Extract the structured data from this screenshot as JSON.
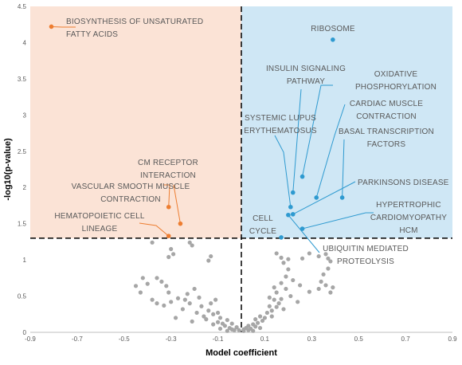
{
  "chart_data": {
    "type": "scatter",
    "xlabel": "Model coefficient",
    "ylabel": "-log10(p-value)",
    "xlim": [
      -0.9,
      0.9
    ],
    "ylim": [
      0,
      4.5
    ],
    "x_ticks": [
      "-0.9",
      "-0.7",
      "-0.5",
      "-0.3",
      "-0.1",
      "0.1",
      "0.3",
      "0.5",
      "0.7",
      "0.9"
    ],
    "x_tick_values": [
      -0.9,
      -0.7,
      -0.5,
      -0.3,
      -0.1,
      0.1,
      0.3,
      0.5,
      0.7,
      0.9
    ],
    "y_ticks": [
      "0",
      "0.5",
      "1",
      "1.5",
      "2",
      "2.5",
      "3",
      "3.5",
      "4",
      "4.5"
    ],
    "y_tick_values": [
      0,
      0.5,
      1,
      1.5,
      2,
      2.5,
      3,
      3.5,
      4,
      4.5
    ],
    "threshold_y": 1.3,
    "threshold_x": 0,
    "colors": {
      "negative": "#ed7d31",
      "positive": "#2e9ad0",
      "nonsig": "#a6a6a6",
      "negative_region": "#fbe3d6",
      "positive_region": "#cfe7f5"
    },
    "labeled_points": [
      {
        "name": "BIOSYNTHESIS OF UNSATURATED FATTY ACIDS",
        "lines": [
          "BIOSYNTHESIS OF UNSATURATED",
          "FATTY ACIDS"
        ],
        "x": -0.81,
        "y": 4.22,
        "group": "negative"
      },
      {
        "name": "CM RECEPTOR INTERACTION",
        "lines": [
          "CM RECEPTOR",
          "INTERACTION"
        ],
        "x": -0.26,
        "y": 1.5,
        "group": "negative"
      },
      {
        "name": "VASCULAR SMOOTH MUSCLE CONTRACTION",
        "lines": [
          "VASCULAR SMOOTH MUSCLE",
          "CONTRACTION"
        ],
        "x": -0.31,
        "y": 1.73,
        "group": "negative"
      },
      {
        "name": "HEMATOPOIETIC CELL LINEAGE",
        "lines": [
          "HEMATOPOIETIC CELL",
          "LINEAGE"
        ],
        "x": -0.31,
        "y": 1.33,
        "group": "negative"
      },
      {
        "name": "RIBOSOME",
        "lines": [
          "RIBOSOME"
        ],
        "x": 0.39,
        "y": 4.04,
        "group": "positive"
      },
      {
        "name": "INSULIN SIGNALING PATHWAY",
        "lines": [
          "INSULIN SIGNALING",
          "PATHWAY"
        ],
        "x": 0.22,
        "y": 1.93,
        "group": "positive"
      },
      {
        "name": "OXIDATIVE PHOSPHORYLATION",
        "lines": [
          "OXIDATIVE",
          "PHOSPHORYLATION"
        ],
        "x": 0.26,
        "y": 2.15,
        "group": "positive"
      },
      {
        "name": "CARDIAC MUSCLE CONTRACTION",
        "lines": [
          "CARDIAC MUSCLE",
          "CONTRACTION"
        ],
        "x": 0.32,
        "y": 1.86,
        "group": "positive"
      },
      {
        "name": "BASAL TRANSCRIPTION FACTORS",
        "lines": [
          "BASAL TRANSCRIPTION",
          "FACTORS"
        ],
        "x": 0.43,
        "y": 1.86,
        "group": "positive"
      },
      {
        "name": "SYSTEMIC LUPUS ERYTHEMATOSUS",
        "lines": [
          "SYSTEMIC LUPUS",
          "ERYTHEMATOSUS"
        ],
        "x": 0.21,
        "y": 1.73,
        "group": "positive"
      },
      {
        "name": "PARKINSONS DISEASE",
        "lines": [
          "PARKINSONS DISEASE"
        ],
        "x": 0.22,
        "y": 1.63,
        "group": "positive"
      },
      {
        "name": "HYPERTROPHIC CARDIOMYOPATHY HCM",
        "lines": [
          "HYPERTROPHIC",
          "CARDIOMYOPATHY",
          "HCM"
        ],
        "x": 0.26,
        "y": 1.43,
        "group": "positive"
      },
      {
        "name": "CELL CYCLE",
        "lines": [
          "CELL",
          "CYCLE"
        ],
        "x": 0.17,
        "y": 1.31,
        "group": "positive"
      },
      {
        "name": "UBIQUITIN MEDIATED PROTEOLYSIS",
        "lines": [
          "UBIQUITIN MEDIATED",
          "PROTEOLYSIS"
        ],
        "x": 0.2,
        "y": 1.62,
        "group": "positive"
      }
    ],
    "nonsig_points": [
      [
        -0.38,
        1.24
      ],
      [
        -0.3,
        1.15
      ],
      [
        -0.29,
        1.08
      ],
      [
        -0.31,
        1.04
      ],
      [
        -0.22,
        1.24
      ],
      [
        -0.21,
        1.2
      ],
      [
        -0.13,
        1.05
      ],
      [
        -0.14,
        0.99
      ],
      [
        -0.42,
        0.75
      ],
      [
        -0.4,
        0.67
      ],
      [
        -0.45,
        0.64
      ],
      [
        -0.43,
        0.55
      ],
      [
        -0.36,
        0.75
      ],
      [
        -0.34,
        0.7
      ],
      [
        -0.32,
        0.64
      ],
      [
        -0.31,
        0.55
      ],
      [
        -0.38,
        0.45
      ],
      [
        -0.36,
        0.4
      ],
      [
        -0.33,
        0.37
      ],
      [
        -0.3,
        0.42
      ],
      [
        -0.27,
        0.47
      ],
      [
        -0.24,
        0.45
      ],
      [
        -0.22,
        0.4
      ],
      [
        -0.23,
        0.53
      ],
      [
        -0.2,
        0.6
      ],
      [
        -0.18,
        0.48
      ],
      [
        -0.17,
        0.36
      ],
      [
        -0.19,
        0.27
      ],
      [
        -0.16,
        0.22
      ],
      [
        -0.14,
        0.3
      ],
      [
        -0.13,
        0.4
      ],
      [
        -0.12,
        0.25
      ],
      [
        -0.1,
        0.27
      ],
      [
        -0.09,
        0.2
      ],
      [
        -0.12,
        0.11
      ],
      [
        -0.1,
        0.14
      ],
      [
        -0.08,
        0.12
      ],
      [
        -0.07,
        0.09
      ],
      [
        -0.06,
        0.17
      ],
      [
        -0.05,
        0.06
      ],
      [
        -0.04,
        0.12
      ],
      [
        -0.04,
        0.04
      ],
      [
        -0.03,
        0.03
      ],
      [
        -0.02,
        0.07
      ],
      [
        -0.01,
        0.03
      ],
      [
        -0.25,
        0.32
      ],
      [
        -0.28,
        0.2
      ],
      [
        -0.15,
        0.18
      ],
      [
        -0.11,
        0.45
      ],
      [
        -0.21,
        0.15
      ],
      [
        -0.06,
        0.02
      ],
      [
        -0.09,
        0.05
      ],
      [
        0.17,
        1.03
      ],
      [
        0.18,
        0.96
      ],
      [
        0.2,
        1.01
      ],
      [
        0.15,
        1.09
      ],
      [
        0.26,
        1.02
      ],
      [
        0.29,
        1.09
      ],
      [
        0.33,
        1.05
      ],
      [
        0.36,
        1.08
      ],
      [
        0.37,
        1.02
      ],
      [
        0.38,
        0.98
      ],
      [
        0.37,
        0.88
      ],
      [
        0.35,
        0.8
      ],
      [
        0.34,
        0.7
      ],
      [
        0.33,
        0.6
      ],
      [
        0.36,
        0.65
      ],
      [
        0.39,
        0.62
      ],
      [
        0.38,
        0.55
      ],
      [
        0.2,
        0.87
      ],
      [
        0.19,
        0.77
      ],
      [
        0.22,
        0.72
      ],
      [
        0.25,
        0.65
      ],
      [
        0.17,
        0.68
      ],
      [
        0.14,
        0.62
      ],
      [
        0.15,
        0.55
      ],
      [
        0.17,
        0.46
      ],
      [
        0.16,
        0.4
      ],
      [
        0.15,
        0.35
      ],
      [
        0.18,
        0.32
      ],
      [
        0.13,
        0.3
      ],
      [
        0.12,
        0.36
      ],
      [
        0.11,
        0.27
      ],
      [
        0.13,
        0.22
      ],
      [
        0.1,
        0.2
      ],
      [
        0.09,
        0.16
      ],
      [
        0.08,
        0.22
      ],
      [
        0.07,
        0.13
      ],
      [
        0.06,
        0.18
      ],
      [
        0.06,
        0.08
      ],
      [
        0.05,
        0.11
      ],
      [
        0.04,
        0.05
      ],
      [
        0.03,
        0.09
      ],
      [
        0.03,
        0.03
      ],
      [
        0.02,
        0.06
      ],
      [
        0.01,
        0.02
      ],
      [
        0.01,
        0.04
      ],
      [
        0.29,
        0.56
      ],
      [
        0.21,
        0.5
      ],
      [
        0.24,
        0.42
      ],
      [
        0.14,
        0.45
      ],
      [
        0.19,
        0.6
      ],
      [
        0.12,
        0.48
      ],
      [
        0.05,
        0.02
      ],
      [
        0.08,
        0.06
      ]
    ]
  }
}
